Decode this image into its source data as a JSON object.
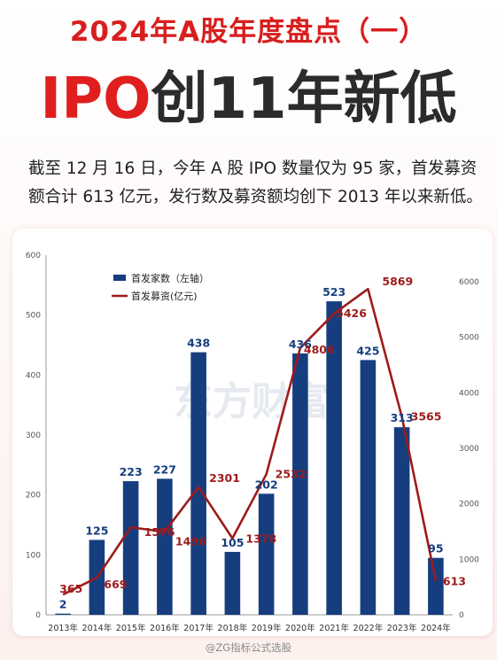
{
  "header": {
    "title_line1": "2024年A股年度盘点（一）",
    "title_line2_red": "IPO",
    "title_line2_dark": "创11年新低"
  },
  "description": {
    "line1": "截至 12 月 16 日，今年 A 股 IPO 数量仅为 95 家，首发募资",
    "line2": "额合计 613 亿元，发行数及募资额均创下 2013 年以来新低。"
  },
  "watermark": "东方财富",
  "footer": "@ZG指标公式选股",
  "colors": {
    "bar": "#163e7f",
    "line": "#9e1b1b",
    "title_red": "#d81e1e"
  },
  "chart_data": {
    "type": "bar",
    "categories": [
      "2013年",
      "2014年",
      "2015年",
      "2016年",
      "2017年",
      "2018年",
      "2019年",
      "2020年",
      "2021年",
      "2022年",
      "2023年",
      "2024年"
    ],
    "series": [
      {
        "name": "首发家数（左轴）",
        "type": "bar",
        "axis": "left",
        "values": [
          2,
          125,
          223,
          227,
          438,
          105,
          202,
          436,
          523,
          425,
          313,
          95
        ]
      },
      {
        "name": "首发募资(亿元)",
        "type": "line",
        "axis": "right",
        "values": [
          365,
          669,
          1576,
          1496,
          2301,
          1378,
          2532,
          4806,
          5426,
          5869,
          3565,
          613
        ]
      }
    ],
    "y_left": {
      "ticks": [
        0,
        100,
        200,
        300,
        400,
        500,
        600
      ],
      "range": [
        0,
        600
      ]
    },
    "y_right": {
      "ticks": [
        0,
        1000,
        2000,
        3000,
        4000,
        5000,
        6000
      ],
      "range": [
        0,
        6500
      ]
    },
    "legend_position": "top-left",
    "grid": false
  }
}
